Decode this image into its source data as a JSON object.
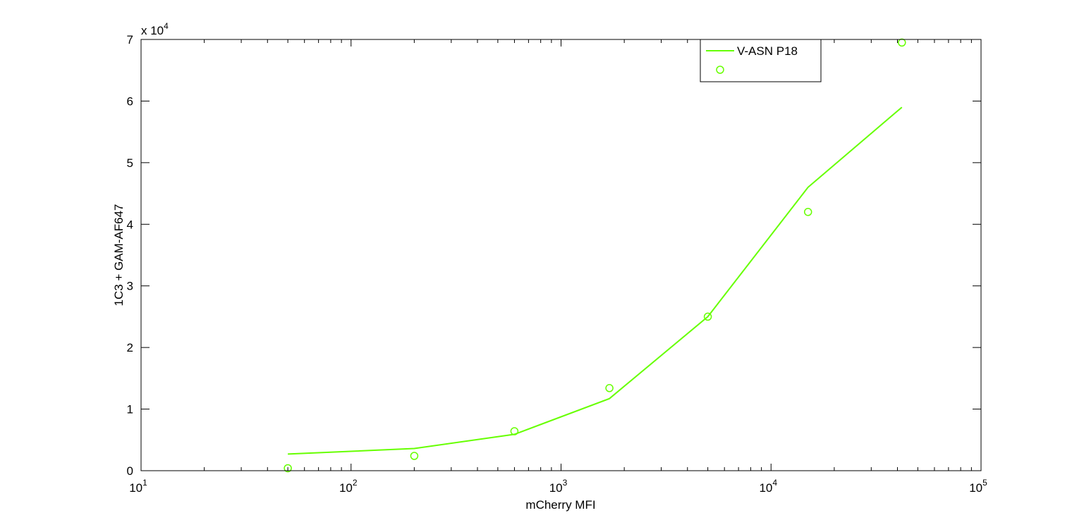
{
  "chart_data": {
    "type": "line",
    "title": "",
    "xlabel": "mCherry MFI",
    "ylabel": "1C3 + GAM-AF647",
    "xscale": "log",
    "xlim": [
      10,
      100000
    ],
    "ylim": [
      0,
      70000
    ],
    "y_multiplier": {
      "base": "x 10",
      "exponent": "4"
    },
    "grid": false,
    "legend_position": "top-right",
    "x_ticks": [
      {
        "base": "10",
        "exponent": "1",
        "value": 10
      },
      {
        "base": "10",
        "exponent": "2",
        "value": 100
      },
      {
        "base": "10",
        "exponent": "3",
        "value": 1000
      },
      {
        "base": "10",
        "exponent": "4",
        "value": 10000
      },
      {
        "base": "10",
        "exponent": "5",
        "value": 100000
      }
    ],
    "y_ticks": [
      {
        "label": "0",
        "value": 0
      },
      {
        "label": "1",
        "value": 10000
      },
      {
        "label": "2",
        "value": 20000
      },
      {
        "label": "3",
        "value": 30000
      },
      {
        "label": "4",
        "value": 40000
      },
      {
        "label": "5",
        "value": 50000
      },
      {
        "label": "6",
        "value": 60000
      },
      {
        "label": "7",
        "value": 70000
      }
    ],
    "series": [
      {
        "name": "V-ASN P18",
        "style": "line",
        "color": "#66ff00",
        "x": [
          50,
          200,
          600,
          1700,
          5000,
          15000,
          42000
        ],
        "y": [
          2700,
          3600,
          5900,
          11700,
          25000,
          46000,
          59000
        ]
      },
      {
        "style": "marker-circle",
        "color": "#66ff00",
        "x": [
          50,
          200,
          600,
          1700,
          5000,
          15000,
          42000
        ],
        "y": [
          400,
          2400,
          6400,
          13400,
          25000,
          42000,
          69500
        ]
      }
    ]
  }
}
